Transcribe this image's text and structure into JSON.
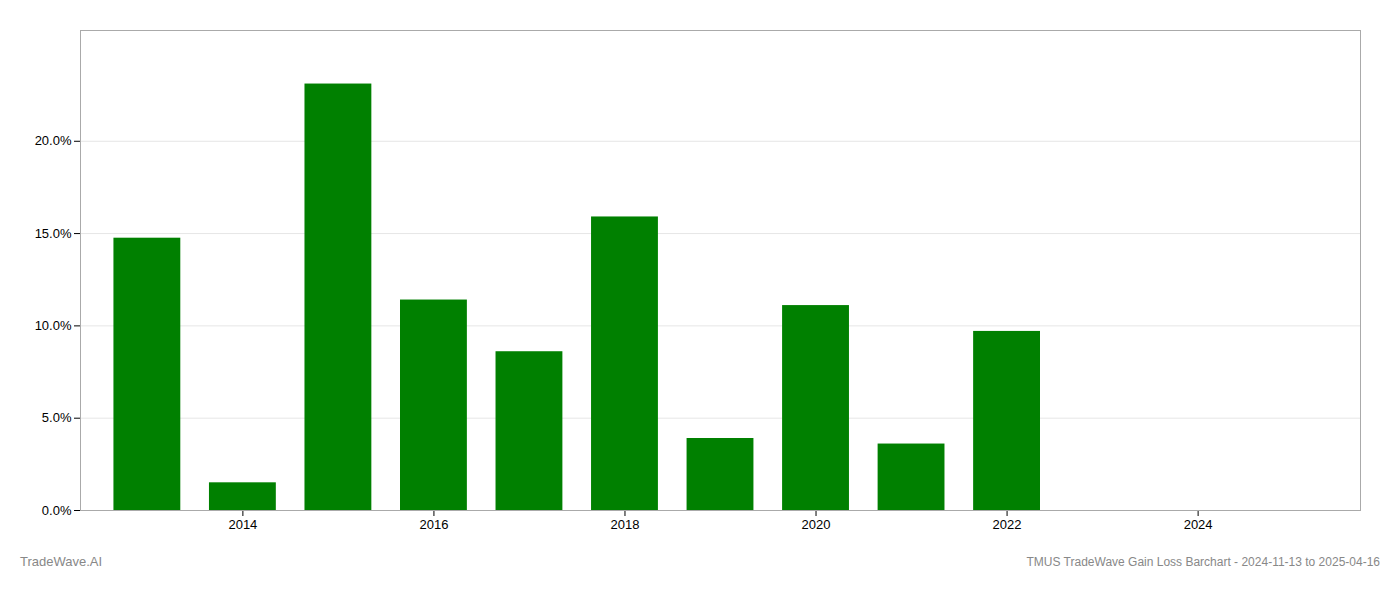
{
  "chart_data": {
    "type": "bar",
    "title": "TMUS TradeWave Gain Loss Barchart - 2024-11-13 to 2025-04-16",
    "annotations": [
      "TradeWave.AI"
    ],
    "x": [
      2013,
      2014,
      2015,
      2016,
      2017,
      2018,
      2019,
      2020,
      2021,
      2022,
      2023
    ],
    "values": [
      0.1475,
      0.015,
      0.231,
      0.114,
      0.086,
      0.159,
      0.039,
      0.111,
      0.036,
      0.097,
      0.0
    ],
    "color": "#008000",
    "xlim": [
      2012.3,
      2025.7
    ],
    "xticks": [
      2014,
      2016,
      2018,
      2020,
      2022,
      2024
    ],
    "ylim": [
      0,
      0.26
    ],
    "yticks": [
      {
        "value": 0.0,
        "label": "0.0%"
      },
      {
        "value": 0.05,
        "label": "5.0%"
      },
      {
        "value": 0.1,
        "label": "10.0%"
      },
      {
        "value": 0.15,
        "label": "15.0%"
      },
      {
        "value": 0.2,
        "label": "20.0%"
      }
    ],
    "grid": true
  }
}
